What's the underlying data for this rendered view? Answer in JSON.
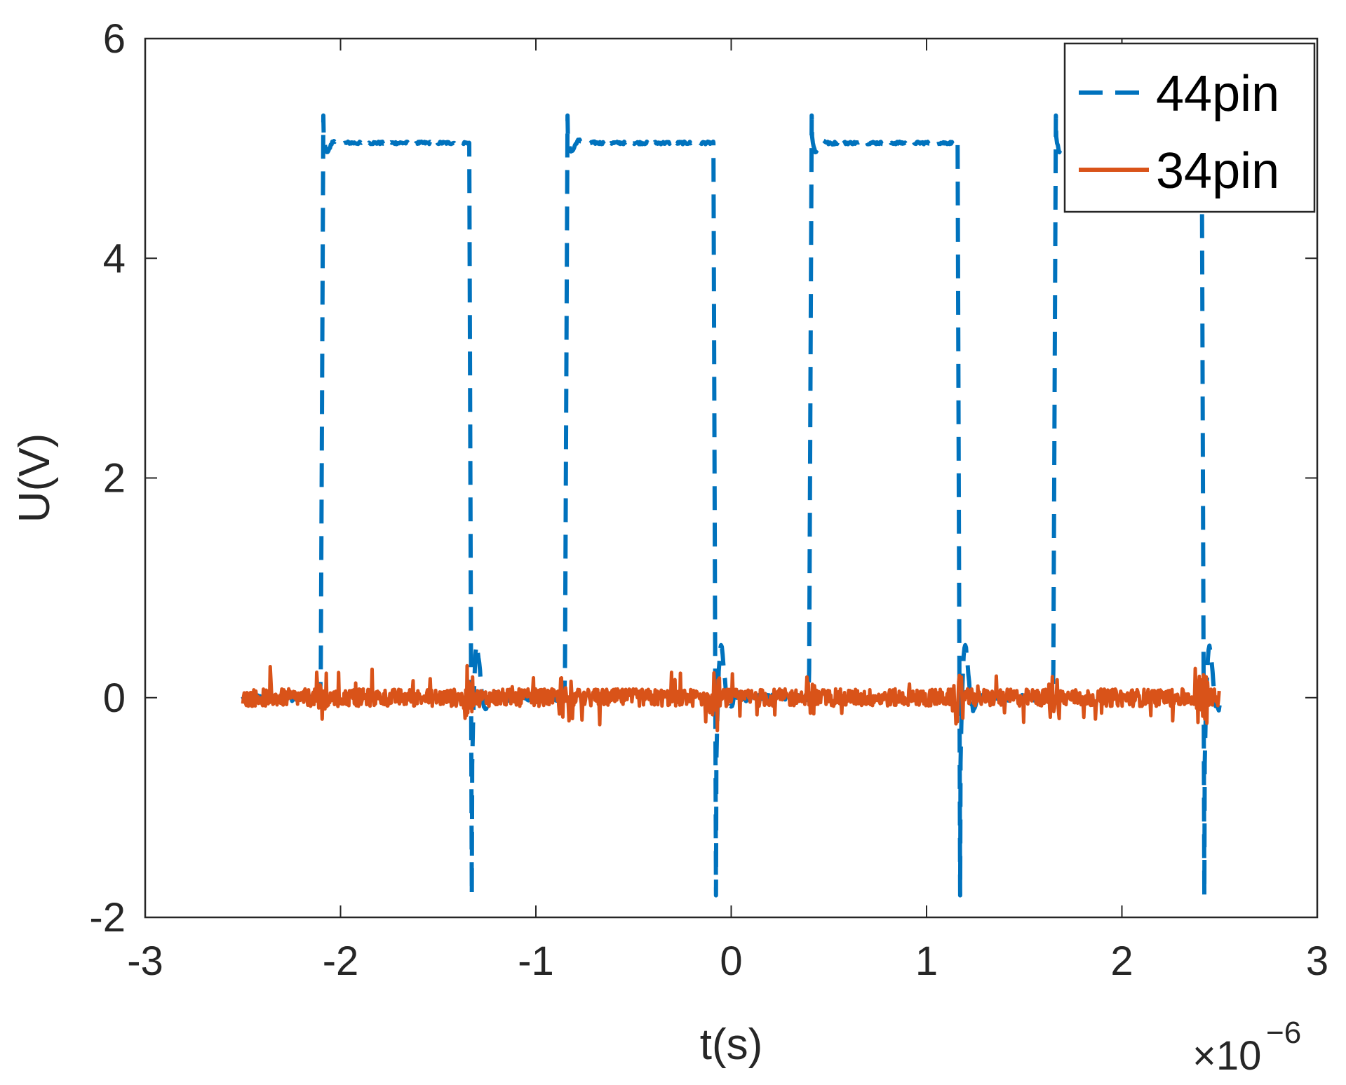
{
  "chart_data": {
    "type": "line",
    "xlabel": "t(s)",
    "ylabel": "U(V)",
    "x_exponent_base": "×10",
    "x_exponent_power": "−6",
    "xlim": [
      -3,
      3
    ],
    "ylim": [
      -2,
      6
    ],
    "x_ticks": [
      -3,
      -2,
      -1,
      0,
      1,
      2,
      3
    ],
    "y_ticks": [
      -2,
      0,
      2,
      4,
      6
    ],
    "x_tick_labels": [
      "-3",
      "-2",
      "-1",
      "0",
      "1",
      "2",
      "3"
    ],
    "y_tick_labels": [
      "-2",
      "0",
      "2",
      "4",
      "6"
    ],
    "grid": false,
    "box": true,
    "legend_position": "top-right",
    "series": [
      {
        "name": "44pin",
        "color": "#0072BD",
        "line_style": "dashed",
        "x_range": [
          -2.5,
          2.5
        ],
        "low_level": 0.0,
        "high_level": 5.05,
        "overshoot_peak": 5.3,
        "undershoot_min": -1.8,
        "rising_edges": [
          -2.1,
          -0.85,
          0.4,
          1.65
        ],
        "falling_edges": [
          -1.34,
          -0.09,
          1.16,
          2.41
        ]
      },
      {
        "name": "34pin",
        "color": "#D95319",
        "line_style": "solid",
        "x_range": [
          -2.5,
          2.5
        ],
        "mean": 0.0,
        "noise_amplitude": 0.1,
        "spike_max": 0.3,
        "spike_min": -0.3
      }
    ]
  }
}
